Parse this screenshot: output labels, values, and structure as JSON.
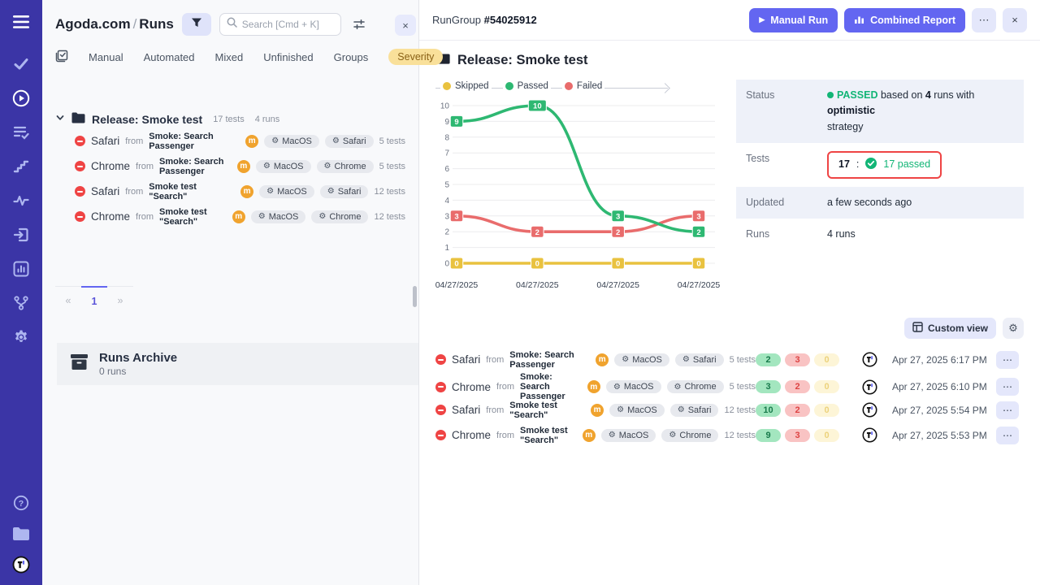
{
  "colors": {
    "accent": "#6366f1",
    "sidebar": "#3b35a6",
    "passed": "#2eb872",
    "failed": "#e96c6c",
    "skipped": "#e9c23f",
    "highlight": "#ef4444"
  },
  "icons": {
    "gear": "⚙",
    "play": "▶",
    "more": "⋯",
    "close": "×",
    "prev": "«",
    "next": "»"
  },
  "left_panel": {
    "breadcrumb": {
      "project": "Agoda.com",
      "separator": "/",
      "page": "Runs"
    },
    "search_placeholder": "Search [Cmd + K]",
    "tabs": {
      "manual": "Manual",
      "automated": "Automated",
      "mixed": "Mixed",
      "unfinished": "Unfinished",
      "groups": "Groups",
      "severity": "Severity"
    },
    "tree": {
      "group_label": "Release: Smoke test",
      "group_tests": "17 tests",
      "group_runs": "4 runs"
    },
    "pagination": {
      "current": "1"
    },
    "archive": {
      "title": "Runs Archive",
      "count": "0 runs"
    }
  },
  "run_group": {
    "label": "RunGroup",
    "id": "#54025912",
    "manual_run": "Manual Run",
    "combined_report": "Combined Report",
    "title": "Release: Smoke test",
    "details": {
      "status_label": "Status",
      "status_value": "PASSED",
      "status_mid1": " based on ",
      "status_runs": "4",
      "status_mid2": " runs with ",
      "status_strategy": "optimistic",
      "status_tail": "strategy",
      "tests_label": "Tests",
      "tests_total": "17",
      "tests_colon": ":",
      "tests_passed": "17 passed",
      "updated_label": "Updated",
      "updated_value": "a few seconds ago",
      "runs_label": "Runs",
      "runs_value": "4 runs"
    },
    "custom_view": "Custom view"
  },
  "chart_data": {
    "type": "line",
    "x": [
      "04/27/2025",
      "04/27/2025",
      "04/27/2025",
      "04/27/2025"
    ],
    "legend": [
      "Skipped",
      "Passed",
      "Failed"
    ],
    "legend_position": "top",
    "series": [
      {
        "name": "Skipped",
        "color": "#e9c23f",
        "values": [
          0,
          0,
          0,
          0
        ]
      },
      {
        "name": "Failed",
        "color": "#e96c6c",
        "values": [
          3,
          2,
          2,
          3
        ]
      },
      {
        "name": "Passed",
        "color": "#2eb872",
        "values": [
          9,
          10,
          3,
          2
        ]
      }
    ],
    "ylim": [
      0,
      10
    ],
    "yticks": [
      0,
      1,
      2,
      3,
      4,
      5,
      6,
      7,
      8,
      9,
      10
    ],
    "grid": true
  },
  "runs": [
    {
      "browser": "Safari",
      "from": "from",
      "source": "Smoke: Search Passenger",
      "badge": "m",
      "env1": "MacOS",
      "env2": "Safari",
      "tests": "5 tests",
      "passed": "2",
      "failed": "3",
      "skipped": "0",
      "date": "Apr 27, 2025 6:17 PM"
    },
    {
      "browser": "Chrome",
      "from": "from",
      "source": "Smoke: Search Passenger",
      "badge": "m",
      "env1": "MacOS",
      "env2": "Chrome",
      "tests": "5 tests",
      "passed": "3",
      "failed": "2",
      "skipped": "0",
      "date": "Apr 27, 2025 6:10 PM"
    },
    {
      "browser": "Safari",
      "from": "from",
      "source": "Smoke test \"Search\"",
      "badge": "m",
      "env1": "MacOS",
      "env2": "Safari",
      "tests": "12 tests",
      "passed": "10",
      "failed": "2",
      "skipped": "0",
      "date": "Apr 27, 2025 5:54 PM"
    },
    {
      "browser": "Chrome",
      "from": "from",
      "source": "Smoke test \"Search\"",
      "badge": "m",
      "env1": "MacOS",
      "env2": "Chrome",
      "tests": "12 tests",
      "passed": "9",
      "failed": "3",
      "skipped": "0",
      "date": "Apr 27, 2025 5:53 PM"
    }
  ]
}
